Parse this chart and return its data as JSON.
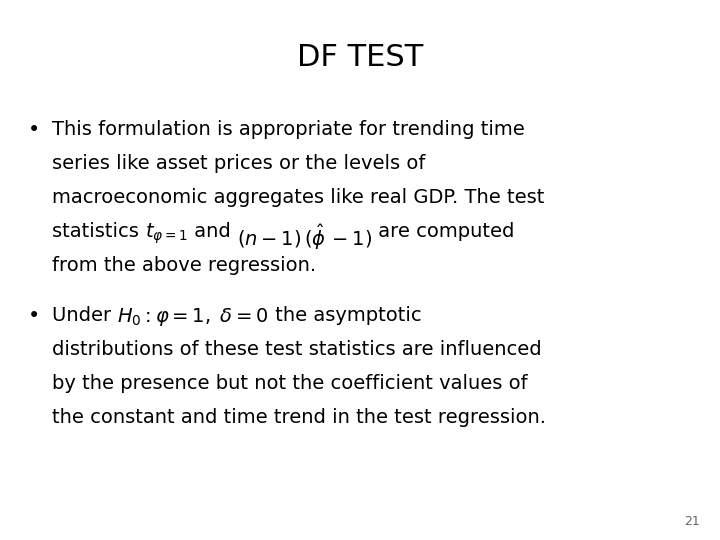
{
  "title": "DF TEST",
  "background_color": "#ffffff",
  "text_color": "#000000",
  "title_fontsize": 22,
  "body_fontsize": 14,
  "math_fontsize": 14,
  "page_number": "21",
  "bullet1_lines": [
    "This formulation is appropriate for trending time",
    "series like asset prices or the levels of",
    "macroeconomic aggregates like real GDP. The test",
    "from the above regression."
  ],
  "bullet2_lines": [
    "distributions of these test statistics are influenced",
    "by the presence but not the coefficient values of",
    "the constant and time trend in the test regression."
  ]
}
